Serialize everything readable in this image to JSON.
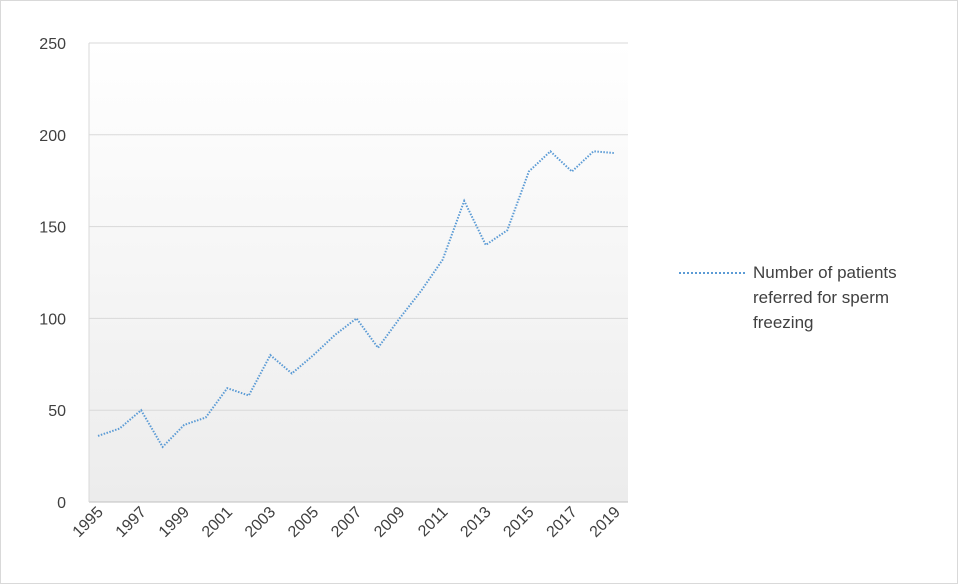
{
  "chart_data": {
    "type": "line",
    "title": "",
    "xlabel": "",
    "ylabel": "",
    "ylim": [
      0,
      250
    ],
    "yticks": [
      0,
      50,
      100,
      150,
      200,
      250
    ],
    "x": [
      1995,
      1996,
      1997,
      1998,
      1999,
      2000,
      2001,
      2002,
      2003,
      2004,
      2005,
      2006,
      2007,
      2008,
      2009,
      2010,
      2011,
      2012,
      2013,
      2014,
      2015,
      2016,
      2017,
      2018,
      2019
    ],
    "xtick_labels": [
      "1995",
      "1997",
      "1999",
      "2001",
      "2003",
      "2005",
      "2007",
      "2009",
      "2011",
      "2013",
      "2015",
      "2017",
      "2019"
    ],
    "series": [
      {
        "name": "Number of patients referred for sperm freezing",
        "color": "#5b9bd5",
        "values": [
          36,
          40,
          50,
          30,
          42,
          46,
          62,
          58,
          80,
          70,
          80,
          91,
          100,
          84,
          100,
          115,
          132,
          164,
          140,
          148,
          180,
          191,
          180,
          191,
          190
        ]
      }
    ],
    "grid": true,
    "legend_position": "right"
  }
}
